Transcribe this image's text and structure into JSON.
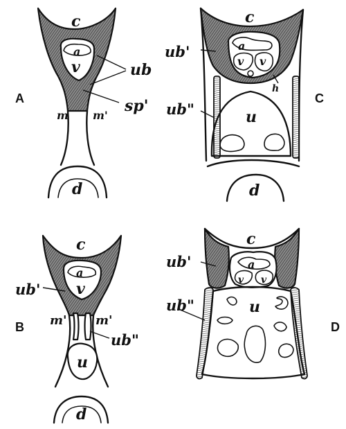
{
  "panels": {
    "A": {
      "panel_label": "A",
      "labels": {
        "c": "c",
        "a": "a",
        "v": "v",
        "ub": "ub",
        "sp": "sp'",
        "m_left": "m",
        "m_right": "m'",
        "d": "d"
      }
    },
    "B": {
      "panel_label": "B",
      "labels": {
        "c": "c",
        "a": "a",
        "v": "v",
        "ub1": "ub'",
        "m_left": "m'",
        "m_right": "m'",
        "ub2": "ub\"",
        "u": "u",
        "d": "d"
      }
    },
    "C": {
      "panel_label": "C",
      "labels": {
        "c": "c",
        "ub1": "ub'",
        "a": "a",
        "v1": "v",
        "v2": "v",
        "h": "h",
        "ub2": "ub\"",
        "u": "u",
        "d": "d"
      }
    },
    "D": {
      "panel_label": "D",
      "labels": {
        "c": "c",
        "ub1": "ub'",
        "a": "a",
        "v1": "v",
        "v2": "v",
        "ub2": "ub\"",
        "u": "u"
      }
    }
  },
  "colors": {
    "ink": "#111111",
    "background": "#ffffff",
    "shading": "#6b6b6b"
  }
}
